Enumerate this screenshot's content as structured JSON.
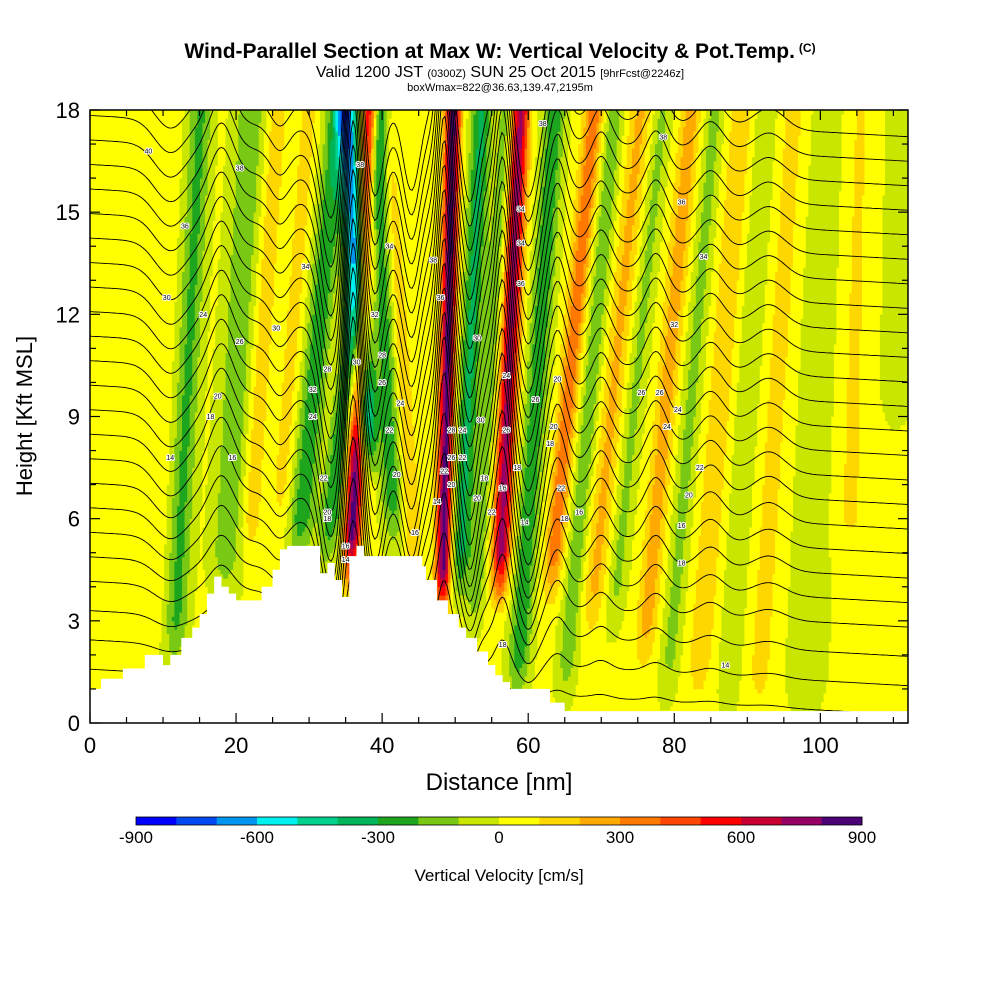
{
  "header": {
    "title": "Wind-Parallel Section at Max W: Vertical Velocity & Pot.Temp.",
    "copyright": "(C)",
    "valid_prefix": "Valid 1200 JST",
    "valid_utc": "(0300Z)",
    "valid_date": "SUN 25 Oct 2015",
    "valid_fcst": "[9hrFcst@2246z]",
    "box_info": "boxWmax=822@36.63,139.47,2195m"
  },
  "colors": {
    "palette": [
      "#0000ff",
      "#0048f0",
      "#0096f0",
      "#00f0f0",
      "#00d08c",
      "#00b45a",
      "#1ea51e",
      "#78c814",
      "#c8e600",
      "#ffff00",
      "#ffd700",
      "#ffaa00",
      "#ff7800",
      "#ff4600",
      "#ff0000",
      "#c80032",
      "#960064",
      "#4b0078"
    ],
    "terrain": "#ffffff",
    "contour": "#000000"
  },
  "chart_data": {
    "type": "heatmap",
    "title": "Wind-Parallel Section at Max W: Vertical Velocity & Pot.Temp.",
    "xlabel": "Distance [nm]",
    "ylabel": "Height [Kft MSL]",
    "xlim": [
      0,
      112
    ],
    "ylim": [
      0,
      18
    ],
    "xticks": [
      0,
      20,
      40,
      60,
      80,
      100
    ],
    "yticks": [
      0,
      3,
      6,
      9,
      12,
      15,
      18
    ],
    "colorbar": {
      "label": "Vertical Velocity [cm/s]",
      "min": -900,
      "max": 900,
      "step": 100,
      "tick_values": [
        -900,
        -600,
        -300,
        0,
        300,
        600,
        900
      ],
      "tick_labels": [
        "-900",
        "-600",
        "-300",
        "0",
        "300",
        "600",
        "900"
      ]
    },
    "velocity_bands": [
      {
        "x": 9,
        "w": 60,
        "tilt": 0.12,
        "width": 1.6,
        "ybot": 3
      },
      {
        "x": 12.5,
        "w": -250,
        "tilt": 0.22,
        "width": 1.6,
        "ybot": 2
      },
      {
        "x": 19,
        "w": -200,
        "tilt": 0.25,
        "width": 2.2,
        "ybot": 4
      },
      {
        "x": 22,
        "w": 150,
        "tilt": 0.3,
        "width": 1.4,
        "ybot": 5
      },
      {
        "x": 26,
        "w": 120,
        "tilt": 0.33,
        "width": 1.3,
        "ybot": 6
      },
      {
        "x": 29,
        "w": -300,
        "tilt": 0.42,
        "width": 1.7,
        "ybot": 5
      },
      {
        "x": 33,
        "w": -320,
        "tilt": 0.55,
        "width": 1.5,
        "ybot": 5
      },
      {
        "x": 36,
        "w": 820,
        "tilt": 0.2,
        "width": 1.15,
        "ybot": 4.5
      },
      {
        "x": 38.5,
        "w": -650,
        "tilt": -0.28,
        "width": 1.5,
        "ybot": 8
      },
      {
        "x": 41.5,
        "w": -280,
        "tilt": -0.18,
        "width": 1.5,
        "ybot": 5.5
      },
      {
        "x": 44,
        "w": 180,
        "tilt": -0.3,
        "width": 1.2,
        "ybot": 4.5
      },
      {
        "x": 48.5,
        "w": 820,
        "tilt": 0.1,
        "width": 1.05,
        "ybot": 3.5
      },
      {
        "x": 51,
        "w": -350,
        "tilt": 0.22,
        "width": 1.4,
        "ybot": 4
      },
      {
        "x": 53.5,
        "w": -200,
        "tilt": 0.3,
        "width": 1.2,
        "ybot": 3
      },
      {
        "x": 56.5,
        "w": 720,
        "tilt": 0.2,
        "width": 1.25,
        "ybot": 4
      },
      {
        "x": 60,
        "w": -300,
        "tilt": 0.3,
        "width": 1.5,
        "ybot": 1
      },
      {
        "x": 64,
        "w": 350,
        "tilt": 0.42,
        "width": 1.3,
        "ybot": 4
      },
      {
        "x": 67,
        "w": -200,
        "tilt": 0.4,
        "width": 1.3,
        "ybot": 1
      },
      {
        "x": 70,
        "w": 200,
        "tilt": 0.45,
        "width": 1.5,
        "ybot": 3
      },
      {
        "x": 73,
        "w": -150,
        "tilt": 0.45,
        "width": 1.3,
        "ybot": 3
      },
      {
        "x": 77.5,
        "w": 230,
        "tilt": 0.4,
        "width": 1.4,
        "ybot": 2
      },
      {
        "x": 81,
        "w": -160,
        "tilt": 0.38,
        "width": 1.3,
        "ybot": 1
      },
      {
        "x": 85,
        "w": 160,
        "tilt": 0.35,
        "width": 1.6,
        "ybot": 1
      },
      {
        "x": 89,
        "w": -120,
        "tilt": 0.3,
        "width": 1.5,
        "ybot": 0.5
      },
      {
        "x": 93,
        "w": 110,
        "tilt": 0.28,
        "width": 1.8,
        "ybot": 0.5
      },
      {
        "x": 99,
        "w": -110,
        "tilt": 0.2,
        "width": 2.5,
        "ybot": 0.5
      },
      {
        "x": 104,
        "w": 90,
        "tilt": 0.1,
        "width": 2.5,
        "ybot": 5
      },
      {
        "x": 110,
        "w": -80,
        "tilt": 0.1,
        "width": 2.5,
        "ybot": 9
      }
    ],
    "theta_levels": [
      14,
      16,
      18,
      20,
      22,
      24,
      26,
      28,
      30,
      32,
      34,
      36,
      38,
      40,
      42,
      44,
      46,
      48,
      50,
      52,
      54,
      56,
      58,
      60
    ],
    "theta_waves": [
      {
        "x": 11,
        "dy": -0.8,
        "width": 3.0
      },
      {
        "x": 18,
        "dy": 1.2,
        "width": 2.2
      },
      {
        "x": 26,
        "dy": -0.6,
        "width": 1.8
      },
      {
        "x": 33,
        "dy": -2.8,
        "width": 2.0
      },
      {
        "x": 36,
        "dy": 4.2,
        "width": 1.3
      },
      {
        "x": 39,
        "dy": -2.2,
        "width": 1.6
      },
      {
        "x": 44,
        "dy": -2.0,
        "width": 1.6
      },
      {
        "x": 48.5,
        "dy": 3.5,
        "width": 1.2
      },
      {
        "x": 52,
        "dy": -2.2,
        "width": 1.5
      },
      {
        "x": 56.5,
        "dy": 2.6,
        "width": 1.3
      },
      {
        "x": 60,
        "dy": -2.0,
        "width": 1.8
      },
      {
        "x": 64,
        "dy": 1.4,
        "width": 1.6
      },
      {
        "x": 70,
        "dy": 0.9,
        "width": 1.8
      },
      {
        "x": 77.5,
        "dy": 1.0,
        "width": 2.0
      },
      {
        "x": 85,
        "dy": 0.7,
        "width": 2.4
      },
      {
        "x": 93,
        "dy": 0.5,
        "width": 3.0
      }
    ],
    "theta_labels": [
      {
        "x": 8,
        "y": 16.8,
        "text": "40"
      },
      {
        "x": 20.5,
        "y": 16.3,
        "text": "38"
      },
      {
        "x": 13,
        "y": 14.6,
        "text": "36"
      },
      {
        "x": 10.5,
        "y": 12.5,
        "text": "30"
      },
      {
        "x": 15.5,
        "y": 12.0,
        "text": "24"
      },
      {
        "x": 20.5,
        "y": 11.2,
        "text": "26"
      },
      {
        "x": 25.5,
        "y": 11.6,
        "text": "30"
      },
      {
        "x": 17.5,
        "y": 9.6,
        "text": "20"
      },
      {
        "x": 16.5,
        "y": 9.0,
        "text": "18"
      },
      {
        "x": 11,
        "y": 7.8,
        "text": "14"
      },
      {
        "x": 19.5,
        "y": 7.8,
        "text": "16"
      },
      {
        "x": 29.5,
        "y": 13.4,
        "text": "34"
      },
      {
        "x": 30.5,
        "y": 9.8,
        "text": "32"
      },
      {
        "x": 32.5,
        "y": 10.4,
        "text": "28"
      },
      {
        "x": 30.5,
        "y": 9.0,
        "text": "24"
      },
      {
        "x": 32,
        "y": 7.2,
        "text": "22"
      },
      {
        "x": 32.5,
        "y": 6.2,
        "text": "20"
      },
      {
        "x": 32.5,
        "y": 6.0,
        "text": "18"
      },
      {
        "x": 35,
        "y": 5.2,
        "text": "16"
      },
      {
        "x": 35,
        "y": 4.8,
        "text": "14"
      },
      {
        "x": 37,
        "y": 16.4,
        "text": "38"
      },
      {
        "x": 41,
        "y": 14.0,
        "text": "34"
      },
      {
        "x": 39,
        "y": 12.0,
        "text": "32"
      },
      {
        "x": 36.5,
        "y": 10.6,
        "text": "30"
      },
      {
        "x": 40,
        "y": 10.8,
        "text": "28"
      },
      {
        "x": 40,
        "y": 10.0,
        "text": "26"
      },
      {
        "x": 41,
        "y": 8.6,
        "text": "22"
      },
      {
        "x": 42.5,
        "y": 9.4,
        "text": "24"
      },
      {
        "x": 42,
        "y": 7.3,
        "text": "20"
      },
      {
        "x": 44.5,
        "y": 5.6,
        "text": "16"
      },
      {
        "x": 47.5,
        "y": 6.5,
        "text": "14"
      },
      {
        "x": 47,
        "y": 13.6,
        "text": "38"
      },
      {
        "x": 48,
        "y": 12.5,
        "text": "36"
      },
      {
        "x": 49.5,
        "y": 8.6,
        "text": "28"
      },
      {
        "x": 49.5,
        "y": 7.8,
        "text": "26"
      },
      {
        "x": 48.5,
        "y": 7.4,
        "text": "22"
      },
      {
        "x": 49.5,
        "y": 7.0,
        "text": "20"
      },
      {
        "x": 51,
        "y": 8.6,
        "text": "24"
      },
      {
        "x": 51,
        "y": 7.8,
        "text": "22"
      },
      {
        "x": 53,
        "y": 11.3,
        "text": "30"
      },
      {
        "x": 53.5,
        "y": 8.9,
        "text": "30"
      },
      {
        "x": 54,
        "y": 7.2,
        "text": "18"
      },
      {
        "x": 53,
        "y": 6.6,
        "text": "20"
      },
      {
        "x": 55,
        "y": 6.2,
        "text": "22"
      },
      {
        "x": 59,
        "y": 15.1,
        "text": "34"
      },
      {
        "x": 59,
        "y": 14.1,
        "text": "34"
      },
      {
        "x": 59,
        "y": 12.9,
        "text": "36"
      },
      {
        "x": 57,
        "y": 10.2,
        "text": "24"
      },
      {
        "x": 57,
        "y": 8.6,
        "text": "26"
      },
      {
        "x": 56.5,
        "y": 6.9,
        "text": "16"
      },
      {
        "x": 58.5,
        "y": 7.5,
        "text": "18"
      },
      {
        "x": 59.5,
        "y": 5.9,
        "text": "14"
      },
      {
        "x": 61,
        "y": 9.5,
        "text": "26"
      },
      {
        "x": 64,
        "y": 10.1,
        "text": "20"
      },
      {
        "x": 63.5,
        "y": 8.7,
        "text": "20"
      },
      {
        "x": 63,
        "y": 8.2,
        "text": "18"
      },
      {
        "x": 64.5,
        "y": 6.9,
        "text": "22"
      },
      {
        "x": 65,
        "y": 6.0,
        "text": "18"
      },
      {
        "x": 67,
        "y": 6.2,
        "text": "16"
      },
      {
        "x": 56.5,
        "y": 2.3,
        "text": "18"
      },
      {
        "x": 62,
        "y": 17.6,
        "text": "38"
      },
      {
        "x": 78.5,
        "y": 17.2,
        "text": "38"
      },
      {
        "x": 81,
        "y": 15.3,
        "text": "36"
      },
      {
        "x": 84,
        "y": 13.7,
        "text": "34"
      },
      {
        "x": 80,
        "y": 11.7,
        "text": "32"
      },
      {
        "x": 75.5,
        "y": 9.7,
        "text": "26"
      },
      {
        "x": 78,
        "y": 9.7,
        "text": "26"
      },
      {
        "x": 80.5,
        "y": 9.2,
        "text": "24"
      },
      {
        "x": 79,
        "y": 8.7,
        "text": "24"
      },
      {
        "x": 83.5,
        "y": 7.5,
        "text": "22"
      },
      {
        "x": 82,
        "y": 6.7,
        "text": "20"
      },
      {
        "x": 81,
        "y": 5.8,
        "text": "16"
      },
      {
        "x": 81,
        "y": 4.7,
        "text": "18"
      },
      {
        "x": 87,
        "y": 1.7,
        "text": "14"
      }
    ],
    "terrain": {
      "x": [
        0,
        1.5,
        1.5,
        4.5,
        4.5,
        7.5,
        7.5,
        10,
        10,
        11,
        11,
        12.5,
        12.5,
        14,
        14,
        15,
        15,
        16,
        16,
        17,
        17,
        18,
        18,
        19,
        19,
        20,
        20,
        21,
        21,
        23.5,
        23.5,
        25,
        25,
        26,
        26,
        27,
        27,
        28,
        28,
        31.5,
        31.5,
        32.5,
        32.5,
        33.5,
        33.5,
        34.5,
        34.5,
        35.5,
        35.5,
        36.5,
        36.5,
        37.5,
        37.5,
        39,
        39,
        45.5,
        45.5,
        46,
        46,
        47.5,
        47.5,
        49,
        49,
        50.5,
        50.5,
        51.5,
        51.5,
        53,
        53,
        54.5,
        54.5,
        55.5,
        55.5,
        56.5,
        56.5,
        57.5,
        57.5,
        58.5,
        58.5,
        63,
        63,
        65,
        65,
        112
      ],
      "y": [
        1,
        1,
        1.3,
        1.3,
        1.6,
        1.6,
        2,
        2,
        1.7,
        1.7,
        2,
        2,
        2.5,
        2.5,
        2.8,
        2.8,
        3.2,
        3.2,
        3.8,
        3.8,
        4.3,
        4.3,
        4.0,
        4.0,
        3.8,
        3.8,
        3.6,
        3.6,
        3.6,
        3.6,
        4.0,
        4.0,
        4.5,
        4.5,
        5.1,
        5.1,
        5.2,
        5.2,
        5.2,
        5.2,
        4.4,
        4.4,
        4.7,
        4.7,
        4.2,
        4.2,
        3.7,
        3.7,
        4.9,
        4.9,
        5.2,
        5.2,
        4.9,
        4.9,
        4.9,
        4.9,
        4.6,
        4.6,
        4.2,
        4.2,
        3.6,
        3.6,
        3.2,
        3.2,
        2.8,
        2.8,
        2.5,
        2.5,
        2.1,
        2.1,
        1.7,
        1.7,
        1.4,
        1.4,
        1.2,
        1.2,
        1.0,
        1.0,
        1.0,
        1.0,
        0.6,
        0.6,
        0.35,
        0.35
      ]
    }
  }
}
